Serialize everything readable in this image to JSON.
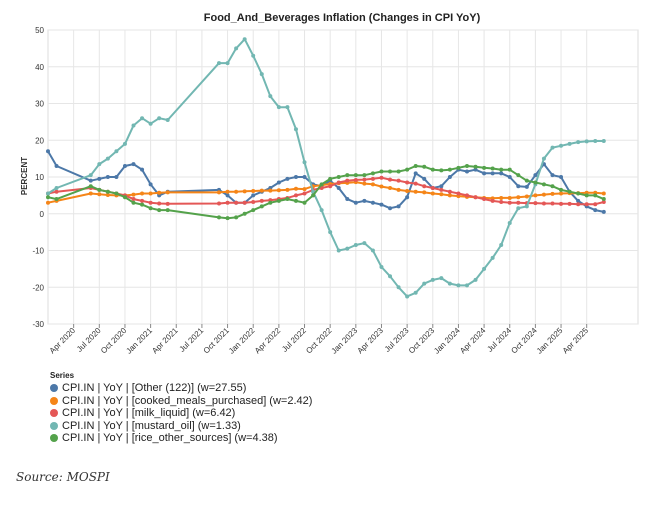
{
  "source": "Source: MOSPI",
  "chart_data": {
    "type": "line",
    "title": "Food_And_Beverages Inflation (Changes in CPI YoY)",
    "xlabel": "",
    "ylabel": "PERCENT",
    "ylim": [
      -30,
      50
    ],
    "yticks": [
      -30,
      -20,
      -10,
      0,
      10,
      20,
      30,
      40,
      50
    ],
    "xlim": [
      "2020-01",
      "2025-10"
    ],
    "xticks": [
      "Apr 2020",
      "Jul 2020",
      "Oct 2020",
      "Jan 2021",
      "Apr 2021",
      "Jul 2021",
      "Oct 2021",
      "Jan 2022",
      "Apr 2022",
      "Jul 2022",
      "Oct 2022",
      "Jan 2023",
      "Apr 2023",
      "Jul 2023",
      "Oct 2023",
      "Jan 2024",
      "Apr 2024",
      "Jul 2024",
      "Oct 2024",
      "Jan 2025",
      "Apr 2025"
    ],
    "grid": true,
    "legend_position": "bottom-left",
    "legend_title": "Series",
    "series": [
      {
        "name": "CPI.IN | YoY | [Other (122)] (w=27.55)",
        "color": "#4c78a8",
        "points": [
          [
            "2020-01",
            17
          ],
          [
            "2020-02",
            13
          ],
          [
            "2020-06",
            9
          ],
          [
            "2020-07",
            9.5
          ],
          [
            "2020-08",
            10
          ],
          [
            "2020-09",
            10
          ],
          [
            "2020-10",
            13
          ],
          [
            "2020-11",
            13.5
          ],
          [
            "2020-12",
            12
          ],
          [
            "2021-01",
            8
          ],
          [
            "2021-02",
            5
          ],
          [
            "2021-03",
            6
          ],
          [
            "2021-09",
            6.5
          ],
          [
            "2021-10",
            5
          ],
          [
            "2021-11",
            3
          ],
          [
            "2021-12",
            3
          ],
          [
            "2022-01",
            5
          ],
          [
            "2022-02",
            6
          ],
          [
            "2022-03",
            7
          ],
          [
            "2022-04",
            8.5
          ],
          [
            "2022-05",
            9.5
          ],
          [
            "2022-06",
            10
          ],
          [
            "2022-07",
            10
          ],
          [
            "2022-08",
            8
          ],
          [
            "2022-09",
            7.5
          ],
          [
            "2022-10",
            9
          ],
          [
            "2022-11",
            7
          ],
          [
            "2022-12",
            4
          ],
          [
            "2023-01",
            3
          ],
          [
            "2023-02",
            3.5
          ],
          [
            "2023-03",
            3
          ],
          [
            "2023-04",
            2.5
          ],
          [
            "2023-05",
            1.5
          ],
          [
            "2023-06",
            2
          ],
          [
            "2023-07",
            4.5
          ],
          [
            "2023-08",
            11
          ],
          [
            "2023-09",
            9.5
          ],
          [
            "2023-10",
            7
          ],
          [
            "2023-11",
            7.5
          ],
          [
            "2023-12",
            10
          ],
          [
            "2024-01",
            12
          ],
          [
            "2024-02",
            11.5
          ],
          [
            "2024-03",
            12
          ],
          [
            "2024-04",
            11
          ],
          [
            "2024-05",
            11
          ],
          [
            "2024-06",
            11
          ],
          [
            "2024-07",
            10
          ],
          [
            "2024-08",
            7.5
          ],
          [
            "2024-09",
            7.3
          ],
          [
            "2024-10",
            10.5
          ],
          [
            "2024-11",
            13.5
          ],
          [
            "2024-12",
            10.5
          ],
          [
            "2025-01",
            10
          ],
          [
            "2025-02",
            6
          ],
          [
            "2025-03",
            3.5
          ],
          [
            "2025-04",
            2
          ],
          [
            "2025-05",
            1
          ],
          [
            "2025-06",
            0.5
          ]
        ]
      },
      {
        "name": "CPI.IN | YoY | [cooked_meals_purchased] (w=2.42)",
        "color": "#f58518",
        "points": [
          [
            "2020-01",
            3
          ],
          [
            "2020-02",
            3.5
          ],
          [
            "2020-06",
            5.5
          ],
          [
            "2020-07",
            5.3
          ],
          [
            "2020-08",
            5.1
          ],
          [
            "2020-09",
            5
          ],
          [
            "2020-10",
            5
          ],
          [
            "2020-11",
            5.2
          ],
          [
            "2020-12",
            5.5
          ],
          [
            "2021-01",
            5.5
          ],
          [
            "2021-02",
            5.7
          ],
          [
            "2021-03",
            5.8
          ],
          [
            "2021-09",
            5.8
          ],
          [
            "2021-10",
            6
          ],
          [
            "2021-11",
            6
          ],
          [
            "2021-12",
            6.1
          ],
          [
            "2022-01",
            6.2
          ],
          [
            "2022-02",
            6.3
          ],
          [
            "2022-03",
            6.3
          ],
          [
            "2022-04",
            6.4
          ],
          [
            "2022-05",
            6.5
          ],
          [
            "2022-06",
            6.8
          ],
          [
            "2022-07",
            6.7
          ],
          [
            "2022-08",
            7.5
          ],
          [
            "2022-09",
            7.8
          ],
          [
            "2022-10",
            8.1
          ],
          [
            "2022-11",
            8.3
          ],
          [
            "2022-12",
            8.4
          ],
          [
            "2023-01",
            8.6
          ],
          [
            "2023-02",
            8.2
          ],
          [
            "2023-03",
            8
          ],
          [
            "2023-04",
            7.4
          ],
          [
            "2023-05",
            7
          ],
          [
            "2023-06",
            6.5
          ],
          [
            "2023-07",
            6.2
          ],
          [
            "2023-08",
            6
          ],
          [
            "2023-09",
            5.8
          ],
          [
            "2023-10",
            5.5
          ],
          [
            "2023-11",
            5.3
          ],
          [
            "2023-12",
            5
          ],
          [
            "2024-01",
            4.8
          ],
          [
            "2024-02",
            4.6
          ],
          [
            "2024-03",
            4.5
          ],
          [
            "2024-04",
            4.3
          ],
          [
            "2024-05",
            4.2
          ],
          [
            "2024-06",
            4.3
          ],
          [
            "2024-07",
            4.3
          ],
          [
            "2024-08",
            4.5
          ],
          [
            "2024-09",
            4.7
          ],
          [
            "2024-10",
            5
          ],
          [
            "2024-11",
            5.2
          ],
          [
            "2024-12",
            5.4
          ],
          [
            "2025-01",
            5.5
          ],
          [
            "2025-02",
            5.6
          ],
          [
            "2025-03",
            5.6
          ],
          [
            "2025-04",
            5.7
          ],
          [
            "2025-05",
            5.7
          ],
          [
            "2025-06",
            5.5
          ]
        ]
      },
      {
        "name": "CPI.IN | YoY | [milk_liquid] (w=6.42)",
        "color": "#e45756",
        "points": [
          [
            "2020-01",
            5.5
          ],
          [
            "2020-02",
            6
          ],
          [
            "2020-06",
            7
          ],
          [
            "2020-07",
            6.5
          ],
          [
            "2020-08",
            6
          ],
          [
            "2020-09",
            5.5
          ],
          [
            "2020-10",
            5
          ],
          [
            "2020-11",
            4
          ],
          [
            "2020-12",
            3.5
          ],
          [
            "2021-01",
            3
          ],
          [
            "2021-02",
            2.8
          ],
          [
            "2021-03",
            2.7
          ],
          [
            "2021-09",
            2.8
          ],
          [
            "2021-10",
            3
          ],
          [
            "2021-11",
            3
          ],
          [
            "2021-12",
            3
          ],
          [
            "2022-01",
            3.2
          ],
          [
            "2022-02",
            3.5
          ],
          [
            "2022-03",
            3.7
          ],
          [
            "2022-04",
            4
          ],
          [
            "2022-05",
            4.3
          ],
          [
            "2022-06",
            5
          ],
          [
            "2022-07",
            5.5
          ],
          [
            "2022-08",
            6.5
          ],
          [
            "2022-09",
            7
          ],
          [
            "2022-10",
            7.5
          ],
          [
            "2022-11",
            8.5
          ],
          [
            "2022-12",
            9
          ],
          [
            "2023-01",
            9.2
          ],
          [
            "2023-02",
            9.3
          ],
          [
            "2023-03",
            9.5
          ],
          [
            "2023-04",
            9.8
          ],
          [
            "2023-05",
            9.3
          ],
          [
            "2023-06",
            9
          ],
          [
            "2023-07",
            8.5
          ],
          [
            "2023-08",
            8.2
          ],
          [
            "2023-09",
            7.5
          ],
          [
            "2023-10",
            7
          ],
          [
            "2023-11",
            6.5
          ],
          [
            "2023-12",
            6
          ],
          [
            "2024-01",
            5.5
          ],
          [
            "2024-02",
            5
          ],
          [
            "2024-03",
            4.5
          ],
          [
            "2024-04",
            4
          ],
          [
            "2024-05",
            3.5
          ],
          [
            "2024-06",
            3.2
          ],
          [
            "2024-07",
            3
          ],
          [
            "2024-08",
            3
          ],
          [
            "2024-09",
            2.9
          ],
          [
            "2024-10",
            2.9
          ],
          [
            "2024-11",
            2.8
          ],
          [
            "2024-12",
            2.8
          ],
          [
            "2025-01",
            2.7
          ],
          [
            "2025-02",
            2.7
          ],
          [
            "2025-03",
            2.6
          ],
          [
            "2025-04",
            2.6
          ],
          [
            "2025-05",
            2.6
          ],
          [
            "2025-06",
            3.2
          ]
        ]
      },
      {
        "name": "CPI.IN | YoY | [mustard_oil] (w=1.33)",
        "color": "#72b7b2",
        "points": [
          [
            "2020-01",
            5.5
          ],
          [
            "2020-02",
            7
          ],
          [
            "2020-06",
            10.5
          ],
          [
            "2020-07",
            13.5
          ],
          [
            "2020-08",
            15
          ],
          [
            "2020-09",
            17
          ],
          [
            "2020-10",
            19
          ],
          [
            "2020-11",
            24
          ],
          [
            "2020-12",
            26
          ],
          [
            "2021-01",
            24.5
          ],
          [
            "2021-02",
            26
          ],
          [
            "2021-03",
            25.5
          ],
          [
            "2021-09",
            41
          ],
          [
            "2021-10",
            41
          ],
          [
            "2021-11",
            45
          ],
          [
            "2021-12",
            47.5
          ],
          [
            "2022-01",
            43
          ],
          [
            "2022-02",
            38
          ],
          [
            "2022-03",
            32
          ],
          [
            "2022-04",
            29
          ],
          [
            "2022-05",
            29
          ],
          [
            "2022-06",
            23
          ],
          [
            "2022-07",
            14
          ],
          [
            "2022-08",
            6
          ],
          [
            "2022-09",
            1
          ],
          [
            "2022-10",
            -5
          ],
          [
            "2022-11",
            -10
          ],
          [
            "2022-12",
            -9.5
          ],
          [
            "2023-01",
            -8.5
          ],
          [
            "2023-02",
            -8
          ],
          [
            "2023-03",
            -10
          ],
          [
            "2023-04",
            -14.5
          ],
          [
            "2023-05",
            -17
          ],
          [
            "2023-06",
            -20
          ],
          [
            "2023-07",
            -22.5
          ],
          [
            "2023-08",
            -21.5
          ],
          [
            "2023-09",
            -19
          ],
          [
            "2023-10",
            -18
          ],
          [
            "2023-11",
            -17.5
          ],
          [
            "2023-12",
            -19
          ],
          [
            "2024-01",
            -19.5
          ],
          [
            "2024-02",
            -19.5
          ],
          [
            "2024-03",
            -18
          ],
          [
            "2024-04",
            -15
          ],
          [
            "2024-05",
            -12
          ],
          [
            "2024-06",
            -8.5
          ],
          [
            "2024-07",
            -2.5
          ],
          [
            "2024-08",
            1.5
          ],
          [
            "2024-09",
            2
          ],
          [
            "2024-10",
            8
          ],
          [
            "2024-11",
            15
          ],
          [
            "2024-12",
            18
          ],
          [
            "2025-01",
            18.5
          ],
          [
            "2025-02",
            19
          ],
          [
            "2025-03",
            19.5
          ],
          [
            "2025-04",
            19.7
          ],
          [
            "2025-05",
            19.8
          ],
          [
            "2025-06",
            19.8
          ]
        ]
      },
      {
        "name": "CPI.IN | YoY | [rice_other_sources] (w=4.38)",
        "color": "#54a24b",
        "points": [
          [
            "2020-01",
            4.5
          ],
          [
            "2020-02",
            4
          ],
          [
            "2020-06",
            7.5
          ],
          [
            "2020-07",
            6.5
          ],
          [
            "2020-08",
            6
          ],
          [
            "2020-09",
            5.5
          ],
          [
            "2020-10",
            4.5
          ],
          [
            "2020-11",
            3
          ],
          [
            "2020-12",
            2.5
          ],
          [
            "2021-01",
            1.5
          ],
          [
            "2021-02",
            1
          ],
          [
            "2021-03",
            1
          ],
          [
            "2021-09",
            -1
          ],
          [
            "2021-10",
            -1.2
          ],
          [
            "2021-11",
            -1
          ],
          [
            "2021-12",
            0
          ],
          [
            "2022-01",
            1
          ],
          [
            "2022-02",
            2
          ],
          [
            "2022-03",
            3
          ],
          [
            "2022-04",
            3.5
          ],
          [
            "2022-05",
            4
          ],
          [
            "2022-06",
            3.5
          ],
          [
            "2022-07",
            3
          ],
          [
            "2022-08",
            5
          ],
          [
            "2022-09",
            8
          ],
          [
            "2022-10",
            9.5
          ],
          [
            "2022-11",
            10
          ],
          [
            "2022-12",
            10.5
          ],
          [
            "2023-01",
            10.5
          ],
          [
            "2023-02",
            10.5
          ],
          [
            "2023-03",
            11
          ],
          [
            "2023-04",
            11.5
          ],
          [
            "2023-05",
            11.5
          ],
          [
            "2023-06",
            11.5
          ],
          [
            "2023-07",
            12
          ],
          [
            "2023-08",
            13
          ],
          [
            "2023-09",
            12.8
          ],
          [
            "2023-10",
            12
          ],
          [
            "2023-11",
            11.8
          ],
          [
            "2023-12",
            12
          ],
          [
            "2024-01",
            12.5
          ],
          [
            "2024-02",
            13
          ],
          [
            "2024-03",
            12.8
          ],
          [
            "2024-04",
            12.5
          ],
          [
            "2024-05",
            12.3
          ],
          [
            "2024-06",
            12
          ],
          [
            "2024-07",
            12
          ],
          [
            "2024-08",
            10.5
          ],
          [
            "2024-09",
            9
          ],
          [
            "2024-10",
            8.5
          ],
          [
            "2024-11",
            8
          ],
          [
            "2024-12",
            7.5
          ],
          [
            "2025-01",
            6.5
          ],
          [
            "2025-02",
            6
          ],
          [
            "2025-03",
            5.5
          ],
          [
            "2025-04",
            5
          ],
          [
            "2025-05",
            5
          ],
          [
            "2025-06",
            4
          ]
        ]
      }
    ]
  }
}
